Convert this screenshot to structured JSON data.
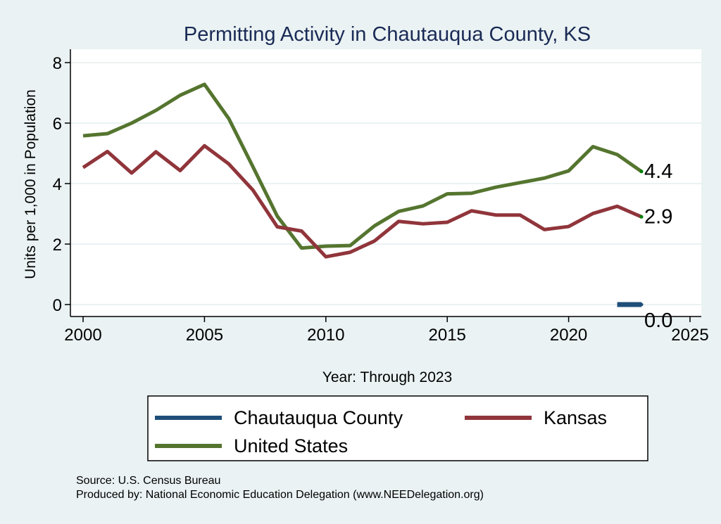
{
  "chart_data": {
    "type": "line",
    "title": "Permitting Activity in Chautauqua County, KS",
    "xlabel": "Year: Through 2023",
    "ylabel": "Units per 1,000 in Population",
    "xlim": [
      2000,
      2025
    ],
    "ylim": [
      0,
      8
    ],
    "xticks": [
      2000,
      2005,
      2010,
      2015,
      2020,
      2025
    ],
    "yticks": [
      0,
      2,
      4,
      6,
      8
    ],
    "grid": true,
    "legend_position": "bottom",
    "x": [
      2000,
      2001,
      2002,
      2003,
      2004,
      2005,
      2006,
      2007,
      2008,
      2009,
      2010,
      2011,
      2012,
      2013,
      2014,
      2015,
      2016,
      2017,
      2018,
      2019,
      2020,
      2021,
      2022,
      2023
    ],
    "series": [
      {
        "name": "Chautauqua County",
        "color": "#1f4e79",
        "x": [
          2022,
          2023
        ],
        "values": [
          0.0,
          0.0
        ],
        "end_label": "0.0"
      },
      {
        "name": "Kansas",
        "color": "#90353b",
        "values": [
          4.53,
          5.06,
          4.35,
          5.05,
          4.43,
          5.25,
          4.65,
          3.78,
          2.57,
          2.43,
          1.58,
          1.73,
          2.1,
          2.75,
          2.67,
          2.72,
          3.1,
          2.96,
          2.96,
          2.48,
          2.58,
          3.01,
          3.25,
          2.9
        ],
        "end_label": "2.9"
      },
      {
        "name": "United States",
        "color": "#55752f",
        "values": [
          5.58,
          5.65,
          6.0,
          6.42,
          6.92,
          7.28,
          6.15,
          4.55,
          2.92,
          1.87,
          1.93,
          1.95,
          2.6,
          3.08,
          3.26,
          3.66,
          3.68,
          3.88,
          4.03,
          4.18,
          4.42,
          5.22,
          4.96,
          4.4
        ],
        "end_label": "4.4"
      }
    ],
    "notes": [
      "Source: U.S. Census Bureau",
      "Produced by: National Economic Education Delegation (www.NEEDelegation.org)"
    ]
  }
}
